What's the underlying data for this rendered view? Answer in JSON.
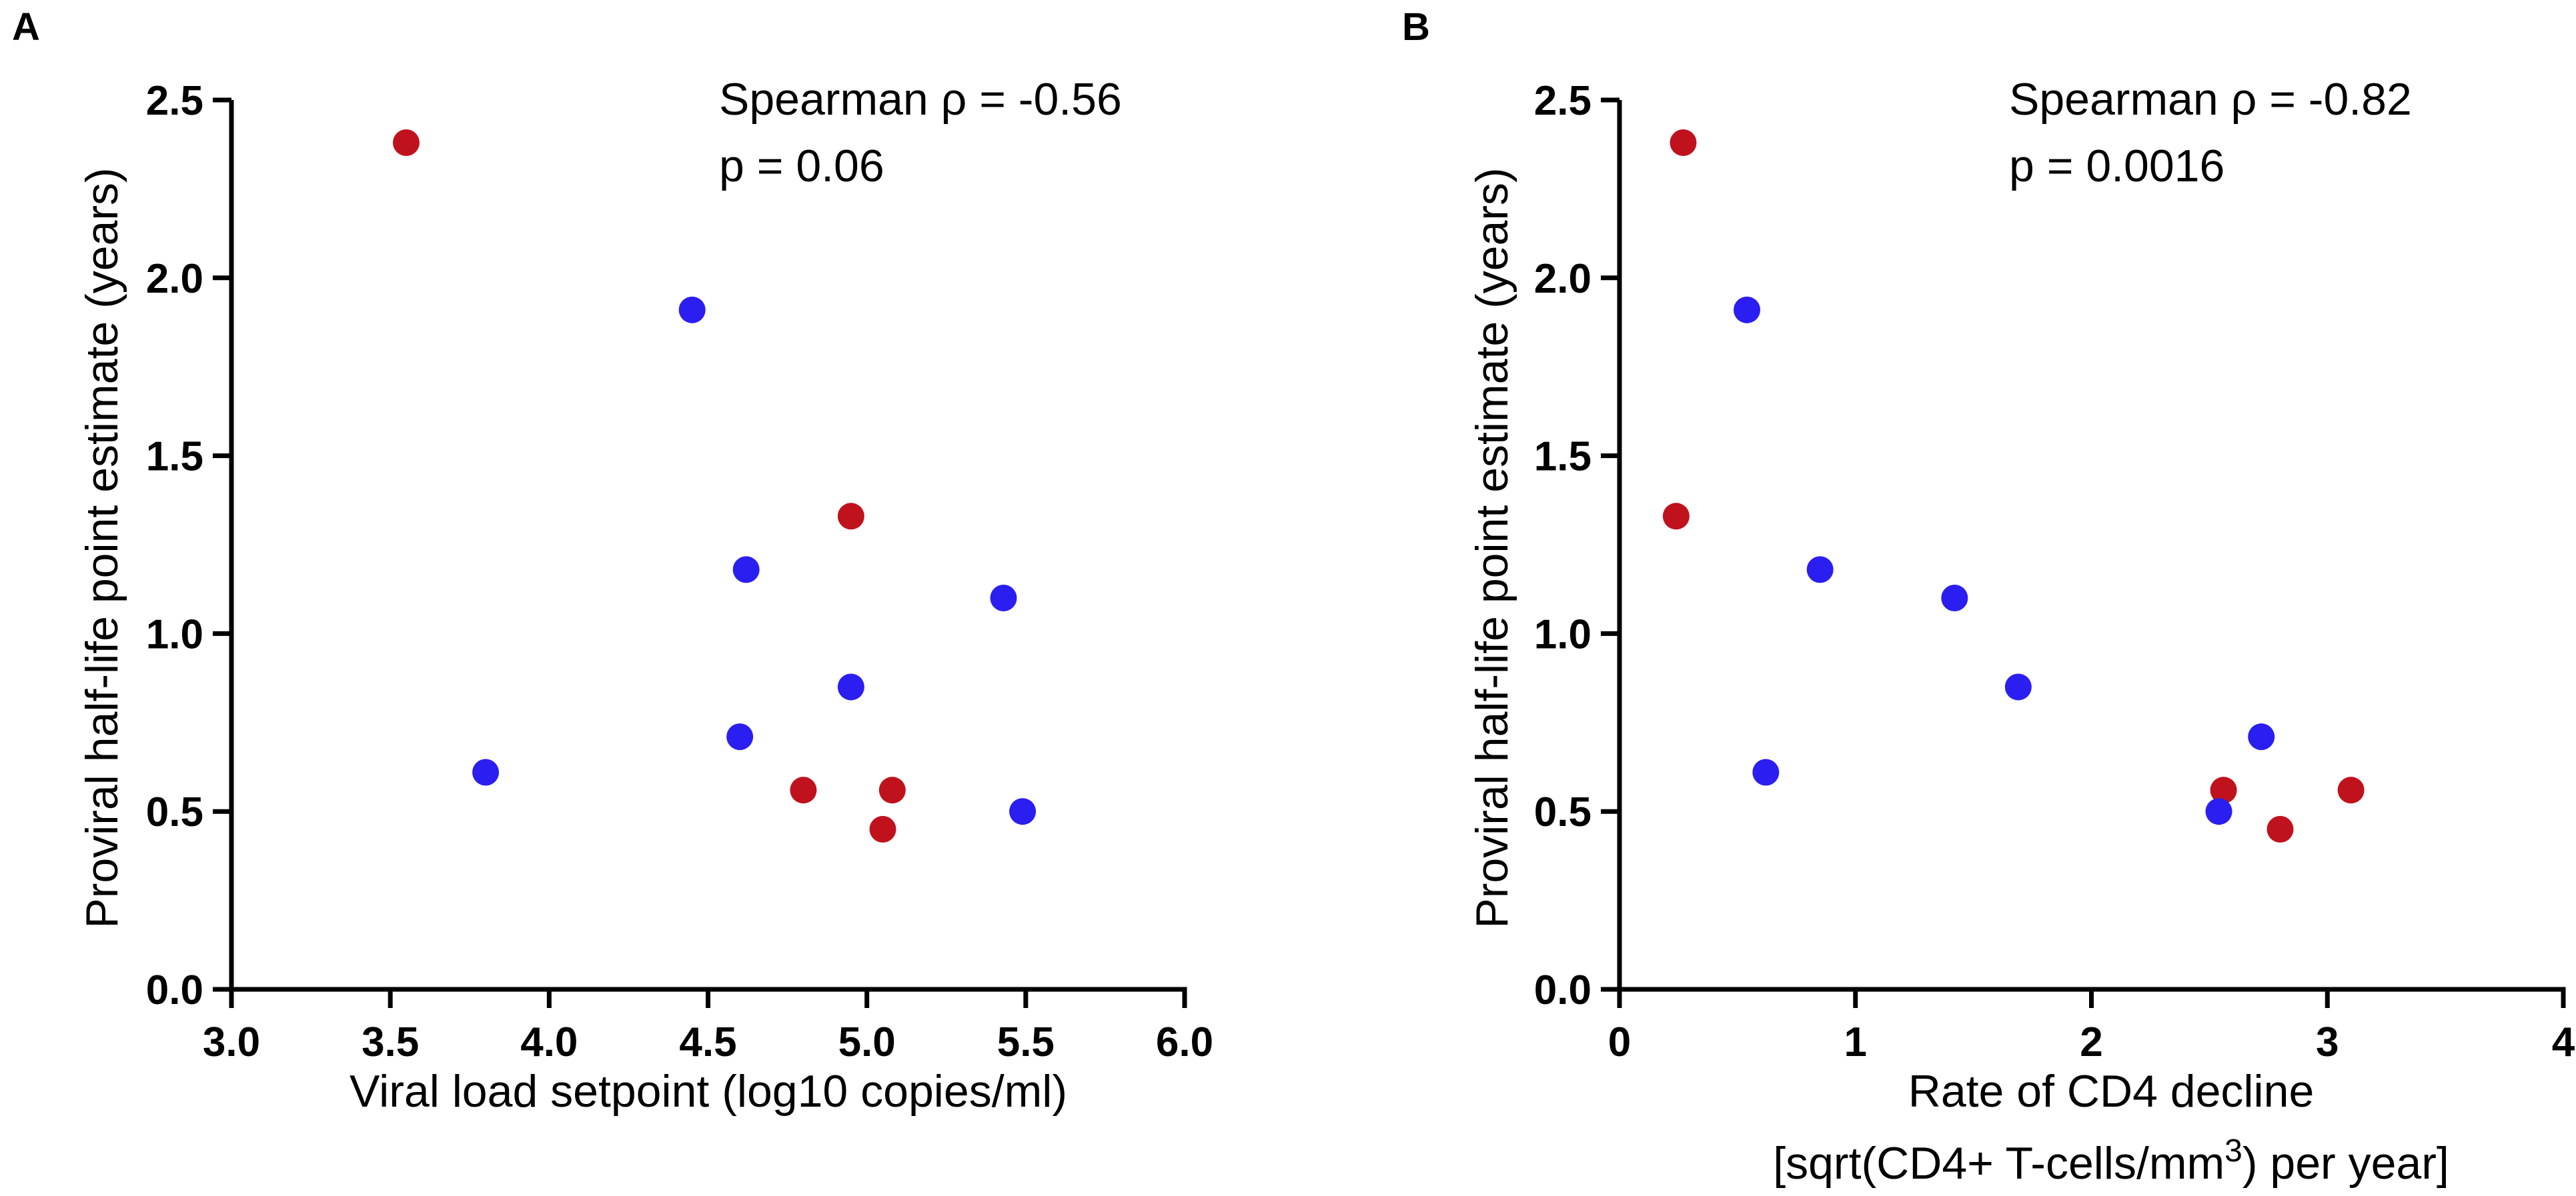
{
  "chart_data": [
    {
      "panel_label": "A",
      "type": "scatter",
      "xlabel": "Viral load setpoint (log10 copies/ml)",
      "xlabel_line2": "",
      "xlabel_line2_suffix": "",
      "xlabel_sup": "",
      "xlabel_tail": "",
      "ylabel": "Proviral half-life point estimate (years)",
      "xlim": [
        3.0,
        6.0
      ],
      "ylim": [
        0.0,
        2.5
      ],
      "xticks": [
        "3.0",
        "3.5",
        "4.0",
        "4.5",
        "5.0",
        "5.5",
        "6.0"
      ],
      "xtick_values": [
        3.0,
        3.5,
        4.0,
        4.5,
        5.0,
        5.5,
        6.0
      ],
      "yticks": [
        "0.0",
        "0.5",
        "1.0",
        "1.5",
        "2.0",
        "2.5"
      ],
      "ytick_values": [
        0.0,
        0.5,
        1.0,
        1.5,
        2.0,
        2.5
      ],
      "annotation": [
        "Spearman ρ = -0.56",
        "p = 0.06"
      ],
      "series": [
        {
          "name": "red",
          "color": "#c0121c",
          "points": [
            [
              3.55,
              2.38
            ],
            [
              4.95,
              1.33
            ],
            [
              4.8,
              0.56
            ],
            [
              5.08,
              0.56
            ],
            [
              5.05,
              0.45
            ]
          ]
        },
        {
          "name": "blue",
          "color": "#2a1ef0",
          "points": [
            [
              4.45,
              1.91
            ],
            [
              4.62,
              1.18
            ],
            [
              5.43,
              1.1
            ],
            [
              4.95,
              0.85
            ],
            [
              4.6,
              0.71
            ],
            [
              3.8,
              0.61
            ],
            [
              5.49,
              0.5
            ]
          ]
        }
      ]
    },
    {
      "panel_label": "B",
      "type": "scatter",
      "xlabel": "Rate of CD4 decline",
      "xlabel_line2": "[sqrt(CD4+ T-cells/mm",
      "xlabel_sup": "3",
      "xlabel_tail": ") per year]",
      "ylabel": "Proviral half-life point estimate (years)",
      "xlim": [
        0,
        4
      ],
      "ylim": [
        0.0,
        2.5
      ],
      "xticks": [
        "0",
        "1",
        "2",
        "3",
        "4"
      ],
      "xtick_values": [
        0,
        1,
        2,
        3,
        4
      ],
      "yticks": [
        "0.0",
        "0.5",
        "1.0",
        "1.5",
        "2.0",
        "2.5"
      ],
      "ytick_values": [
        0.0,
        0.5,
        1.0,
        1.5,
        2.0,
        2.5
      ],
      "annotation": [
        "Spearman ρ = -0.82",
        "p = 0.0016"
      ],
      "series": [
        {
          "name": "red",
          "color": "#c0121c",
          "points": [
            [
              0.27,
              2.38
            ],
            [
              0.24,
              1.33
            ],
            [
              2.56,
              0.56
            ],
            [
              3.1,
              0.56
            ],
            [
              2.8,
              0.45
            ]
          ]
        },
        {
          "name": "blue",
          "color": "#2a1ef0",
          "points": [
            [
              0.54,
              1.91
            ],
            [
              0.85,
              1.18
            ],
            [
              1.42,
              1.1
            ],
            [
              1.69,
              0.85
            ],
            [
              2.72,
              0.71
            ],
            [
              0.62,
              0.61
            ],
            [
              2.54,
              0.5
            ]
          ]
        }
      ]
    }
  ]
}
